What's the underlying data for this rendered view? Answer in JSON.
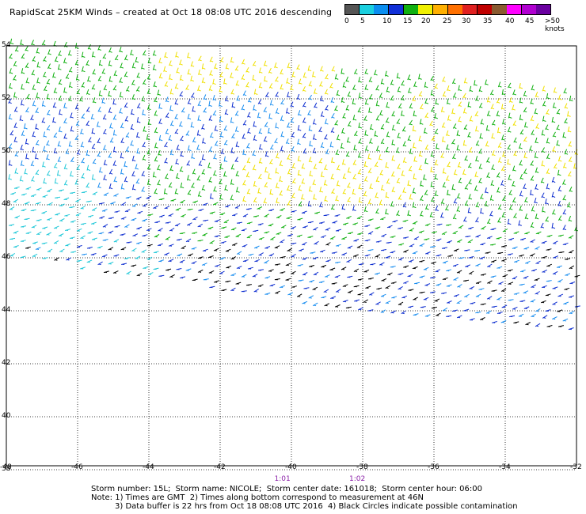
{
  "title": "RapidScat 25KM Winds – created at Oct 18 08:08 UTC 2016 descending",
  "colorbar": {
    "ticks": [
      "0",
      "5",
      "10",
      "15",
      "20",
      "25",
      "30",
      "35",
      "40",
      "45",
      ">50 knots"
    ],
    "colors": [
      "#555555",
      "#1ad0e0",
      "#0a8ef0",
      "#1030d8",
      "#10b010",
      "#f0f000",
      "#ffb000",
      "#ff7000",
      "#e02020",
      "#c00000",
      "#8a5a30",
      "#ff00ff",
      "#b000d0",
      "#6a00a0"
    ]
  },
  "map": {
    "lat_labels": [
      "54",
      "52",
      "50",
      "48",
      "46",
      "44",
      "42",
      "40",
      "38"
    ],
    "lon_labels": [
      "-48",
      "-46",
      "-44",
      "-42",
      "-40",
      "-38",
      "-36",
      "-34",
      "-32"
    ],
    "time_labels": [
      "1:01",
      "1:02"
    ],
    "wind_colors": {
      "cyan": "#20c8d8",
      "light_blue": "#1a8ef0",
      "blue": "#1030d0",
      "green": "#10b010",
      "yellow": "#f0e000",
      "orange": "#e08000",
      "black": "#000000"
    }
  },
  "footer": {
    "line1": "Storm number: 15L;  Storm name: NICOLE;  Storm center date: 161018;  Storm center hour: 06:00",
    "line2": "Note: 1) Times are GMT  2) Times along bottom correspond to measurement at 46N",
    "line3": "3) Data buffer is 22 hrs from Oct 18 08:08 UTC 2016  4) Black Circles indicate possible contamination"
  }
}
